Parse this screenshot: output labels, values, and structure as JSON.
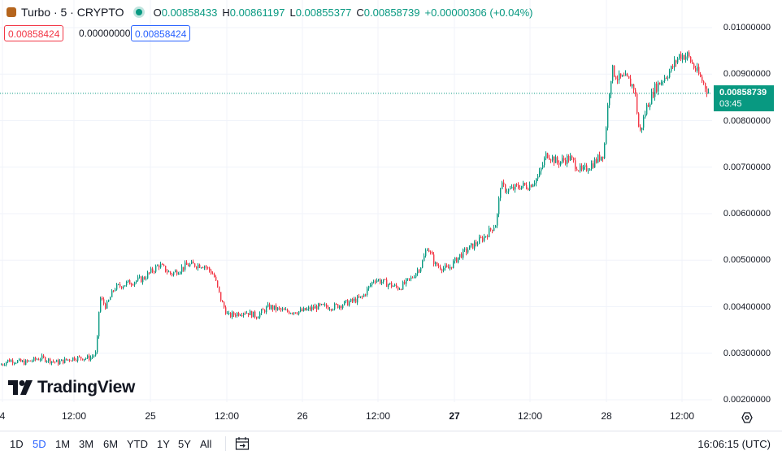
{
  "header": {
    "symbol": "Turbo · 5 · CRYPTO",
    "o_key": "O",
    "o_val": "0.00858433",
    "h_key": "H",
    "h_val": "0.00861197",
    "l_key": "L",
    "l_val": "0.00855377",
    "c_key": "C",
    "c_val": "0.00858739",
    "change": "+0.00000306 (+0.04%)"
  },
  "boxes": {
    "sell": "0.00858424",
    "spread": "0.00000000",
    "buy": "0.00858424"
  },
  "last_price": {
    "price": "0.00858739",
    "countdown": "03:45"
  },
  "logo_text": "TradingView",
  "bottom": {
    "ranges": [
      "1D",
      "5D",
      "1M",
      "3M",
      "6M",
      "YTD",
      "1Y",
      "5Y",
      "All"
    ],
    "active_range": "5D",
    "time": "16:06:15 (UTC)"
  },
  "colors": {
    "up": "#089981",
    "down": "#f23645",
    "grid": "#f0f3fa",
    "accent": "#2962ff"
  },
  "chart_data": {
    "type": "candlestick",
    "y_ticks": [
      "0.01000000",
      "0.00900000",
      "0.00800000",
      "0.00700000",
      "0.00600000",
      "0.00500000",
      "0.00400000",
      "0.00300000",
      "0.00200000"
    ],
    "x_ticks": [
      "4",
      "12:00",
      "25",
      "12:00",
      "26",
      "12:00",
      "27",
      "12:00",
      "28",
      "12:00"
    ],
    "ylim": [
      0.0019,
      0.0103
    ],
    "last_price": 0.00858739,
    "price_path": [
      [
        0,
        0.00275
      ],
      [
        10,
        0.00285
      ],
      [
        30,
        0.0028
      ],
      [
        50,
        0.0029
      ],
      [
        70,
        0.0028
      ],
      [
        90,
        0.0029
      ],
      [
        110,
        0.0029
      ],
      [
        118,
        0.003
      ],
      [
        122,
        0.0042
      ],
      [
        130,
        0.004
      ],
      [
        140,
        0.0044
      ],
      [
        155,
        0.0045
      ],
      [
        175,
        0.0046
      ],
      [
        195,
        0.0049
      ],
      [
        210,
        0.0047
      ],
      [
        230,
        0.0049
      ],
      [
        250,
        0.0049
      ],
      [
        262,
        0.0047
      ],
      [
        272,
        0.0041
      ],
      [
        280,
        0.0038
      ],
      [
        300,
        0.0039
      ],
      [
        315,
        0.0038
      ],
      [
        330,
        0.004
      ],
      [
        350,
        0.0039
      ],
      [
        370,
        0.0039
      ],
      [
        390,
        0.004
      ],
      [
        410,
        0.004
      ],
      [
        430,
        0.0041
      ],
      [
        445,
        0.0042
      ],
      [
        460,
        0.0046
      ],
      [
        475,
        0.0045
      ],
      [
        490,
        0.0044
      ],
      [
        505,
        0.0046
      ],
      [
        518,
        0.0049
      ],
      [
        525,
        0.0053
      ],
      [
        535,
        0.0049
      ],
      [
        550,
        0.0048
      ],
      [
        565,
        0.0051
      ],
      [
        580,
        0.0053
      ],
      [
        595,
        0.0055
      ],
      [
        610,
        0.0058
      ],
      [
        615,
        0.0066
      ],
      [
        625,
        0.0065
      ],
      [
        640,
        0.0066
      ],
      [
        650,
        0.0066
      ],
      [
        662,
        0.0068
      ],
      [
        672,
        0.0073
      ],
      [
        685,
        0.0071
      ],
      [
        700,
        0.0072
      ],
      [
        715,
        0.0069
      ],
      [
        730,
        0.0071
      ],
      [
        742,
        0.0073
      ],
      [
        748,
        0.0085
      ],
      [
        752,
        0.0091
      ],
      [
        760,
        0.0089
      ],
      [
        770,
        0.0089
      ],
      [
        780,
        0.0087
      ],
      [
        786,
        0.0077
      ],
      [
        795,
        0.0083
      ],
      [
        805,
        0.0087
      ],
      [
        815,
        0.0089
      ],
      [
        825,
        0.0091
      ],
      [
        835,
        0.0094
      ],
      [
        845,
        0.0094
      ],
      [
        855,
        0.0091
      ],
      [
        865,
        0.0088
      ],
      [
        872,
        0.00859
      ]
    ]
  }
}
